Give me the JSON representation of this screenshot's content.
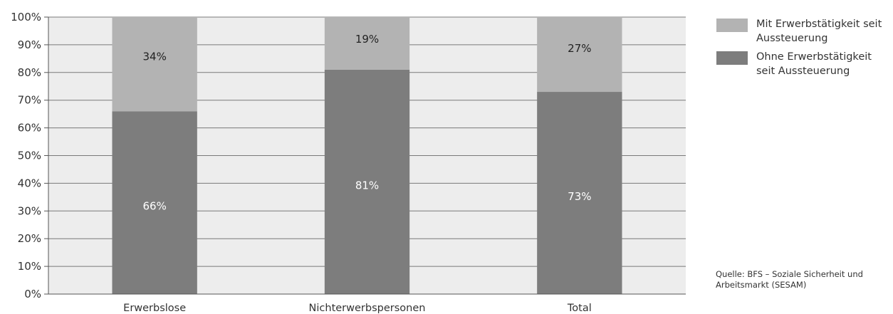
{
  "chart_data": {
    "type": "bar",
    "stacked": true,
    "percent": true,
    "categories": [
      "Erwerbslose",
      "Nichterwerbspersonen",
      "Total"
    ],
    "series": [
      {
        "name": "Ohne Erwerbstätigkeit seit Aussteuerung",
        "values": [
          66,
          81,
          73
        ],
        "labels": [
          "66%",
          "81%",
          "73%"
        ],
        "color": "#7d7d7d",
        "label_color": "#ffffff"
      },
      {
        "name": "Mit Erwerbstätigkeit seit Aussteuerung",
        "values": [
          34,
          19,
          27
        ],
        "labels": [
          "34%",
          "19%",
          "27%"
        ],
        "color": "#b3b3b3",
        "label_color": "#222222"
      }
    ],
    "ylim": [
      0,
      100
    ],
    "yticks": [
      0,
      10,
      20,
      30,
      40,
      50,
      60,
      70,
      80,
      90,
      100
    ],
    "ytick_labels": [
      "0%",
      "10%",
      "20%",
      "30%",
      "40%",
      "50%",
      "60%",
      "70%",
      "80%",
      "90%",
      "100%"
    ],
    "grid": true,
    "legend_position": "right",
    "plot_background": "#ededed",
    "grid_color": "#7a7a7a"
  },
  "legend": {
    "items": [
      {
        "label": "Mit Erwerbstätigkeit seit Aussteuerung",
        "color": "#b3b3b3"
      },
      {
        "label": "Ohne Erwerbstätigkeit seit Aussteuerung",
        "color": "#7d7d7d"
      }
    ]
  },
  "source": "Quelle: BFS – Soziale Sicherheit und Arbeitsmarkt (SESAM)"
}
